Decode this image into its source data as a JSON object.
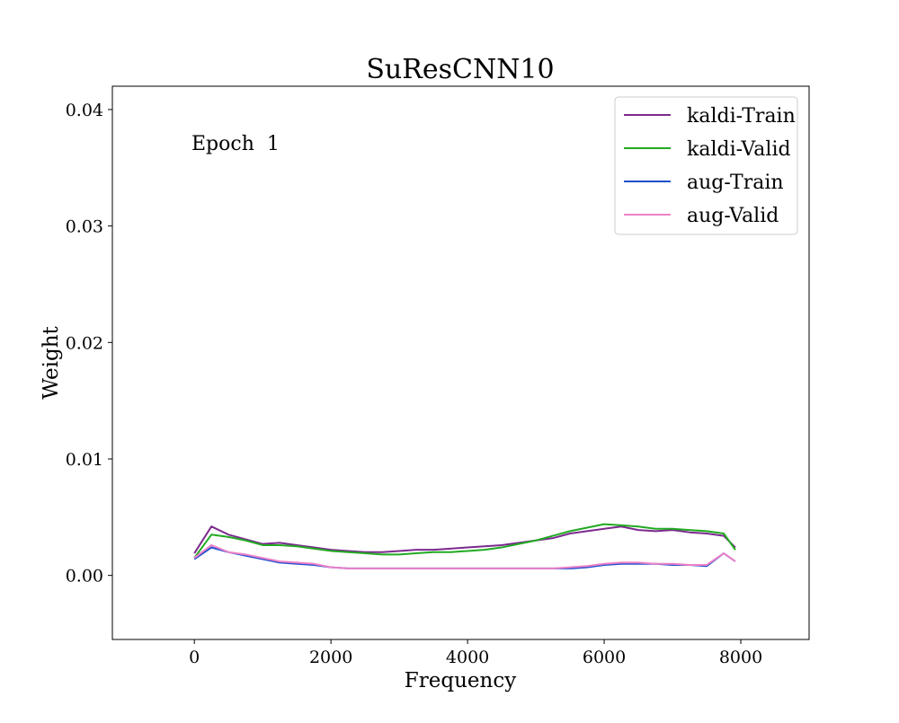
{
  "chart_data": {
    "type": "line",
    "title": "SuResCNN10",
    "xlabel": "Frequency",
    "ylabel": "Weight",
    "annotation": "Epoch  1",
    "xlim": [
      -1200,
      9000
    ],
    "ylim": [
      -0.0055,
      0.042
    ],
    "xticks": [
      0,
      2000,
      4000,
      6000,
      8000
    ],
    "xtick_labels": [
      "0",
      "2000",
      "4000",
      "6000",
      "8000"
    ],
    "yticks": [
      0.0,
      0.01,
      0.02,
      0.03,
      0.04
    ],
    "ytick_labels": [
      "0.00",
      "0.01",
      "0.02",
      "0.03",
      "0.04"
    ],
    "grid": false,
    "legend_position": "top-right",
    "x": [
      0,
      250,
      500,
      750,
      1000,
      1250,
      1500,
      1750,
      2000,
      2250,
      2500,
      2750,
      3000,
      3250,
      3500,
      3750,
      4000,
      4250,
      4500,
      4750,
      5000,
      5250,
      5500,
      5750,
      6000,
      6250,
      6500,
      6750,
      7000,
      7250,
      7500,
      7750,
      7920
    ],
    "series": [
      {
        "name": "kaldi-Train",
        "color": "#7b2a8e",
        "values": [
          0.0019,
          0.0042,
          0.0035,
          0.0031,
          0.0027,
          0.0028,
          0.0026,
          0.0024,
          0.0022,
          0.0021,
          0.002,
          0.002,
          0.0021,
          0.0022,
          0.0022,
          0.0023,
          0.0024,
          0.0025,
          0.0026,
          0.0028,
          0.003,
          0.0032,
          0.0036,
          0.0038,
          0.004,
          0.0042,
          0.0039,
          0.0038,
          0.0039,
          0.0037,
          0.0036,
          0.0034,
          0.0024
        ]
      },
      {
        "name": "kaldi-Valid",
        "color": "#22aa22",
        "values": [
          0.0015,
          0.0035,
          0.0033,
          0.003,
          0.0026,
          0.0026,
          0.0025,
          0.0023,
          0.0021,
          0.002,
          0.0019,
          0.0018,
          0.0018,
          0.0019,
          0.002,
          0.002,
          0.0021,
          0.0022,
          0.0024,
          0.0027,
          0.003,
          0.0034,
          0.0038,
          0.0041,
          0.0044,
          0.0043,
          0.0042,
          0.004,
          0.004,
          0.0039,
          0.0038,
          0.0036,
          0.0022
        ]
      },
      {
        "name": "aug-Train",
        "color": "#1f4fd1",
        "values": [
          0.0014,
          0.0024,
          0.002,
          0.0017,
          0.0014,
          0.0011,
          0.001,
          0.0009,
          0.0007,
          0.0006,
          0.0006,
          0.0006,
          0.0006,
          0.0006,
          0.0006,
          0.0006,
          0.0006,
          0.0006,
          0.0006,
          0.0006,
          0.0006,
          0.0006,
          0.0006,
          0.0007,
          0.0009,
          0.001,
          0.001,
          0.001,
          0.0009,
          0.0009,
          0.0008,
          0.0019,
          0.0012
        ]
      },
      {
        "name": "aug-Valid",
        "color": "#ee82c8",
        "values": [
          0.0015,
          0.0026,
          0.002,
          0.0018,
          0.0015,
          0.0012,
          0.0011,
          0.001,
          0.0007,
          0.0006,
          0.0006,
          0.0006,
          0.0006,
          0.0006,
          0.0006,
          0.0006,
          0.0006,
          0.0006,
          0.0006,
          0.0006,
          0.0006,
          0.0006,
          0.0007,
          0.0008,
          0.001,
          0.0011,
          0.0011,
          0.001,
          0.001,
          0.0009,
          0.0009,
          0.0019,
          0.0012
        ]
      }
    ]
  }
}
